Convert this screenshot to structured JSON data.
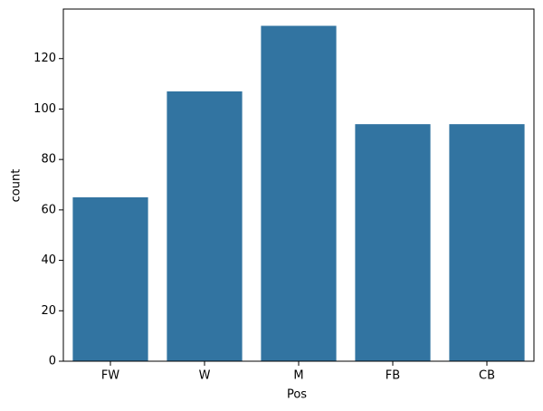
{
  "chart_data": {
    "type": "bar",
    "categories": [
      "FW",
      "W",
      "M",
      "FB",
      "CB"
    ],
    "values": [
      65,
      107,
      133,
      94,
      94
    ],
    "color": "#3274a1",
    "xlabel": "Pos",
    "ylabel": "count",
    "ylim": [
      0,
      139.65
    ],
    "yticks": [
      0,
      20,
      40,
      60,
      80,
      100,
      120
    ],
    "grid": false
  }
}
